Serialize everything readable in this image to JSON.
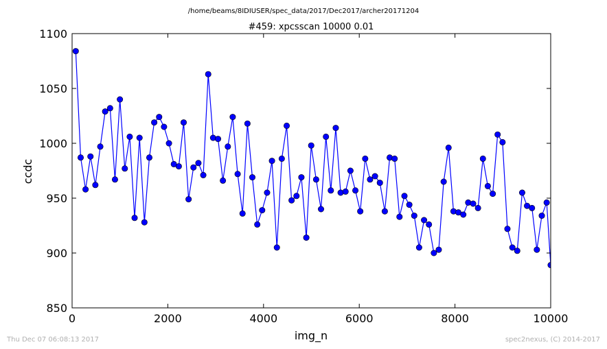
{
  "figure": {
    "suptitle": "/home/beams/8IDIUSER/spec_data/2017/Dec2017/archer20171204",
    "footer_left": "Thu Dec 07 06:08:13 2017",
    "footer_right": "spec2nexus, (C) 2014-2017"
  },
  "chart_data": {
    "type": "line",
    "title": "#459: xpcsscan 10000 0.01",
    "xlabel": "img_n",
    "ylabel": "ccdc",
    "xlim": [
      0,
      10000
    ],
    "ylim": [
      850,
      1100
    ],
    "xticks": [
      0,
      2000,
      4000,
      6000,
      8000,
      10000
    ],
    "yticks": [
      850,
      900,
      950,
      1000,
      1050,
      1100
    ],
    "grid": false,
    "line_color": "#0000ff",
    "marker": "circle",
    "series": [
      {
        "x": [
          76,
          179,
          281,
          384,
          486,
          589,
          691,
          794,
          896,
          999,
          1101,
          1204,
          1306,
          1409,
          1511,
          1614,
          1716,
          1819,
          1921,
          2024,
          2126,
          2229,
          2331,
          2434,
          2536,
          2639,
          2741,
          2844,
          2946,
          3049,
          3151,
          3254,
          3356,
          3459,
          3561,
          3664,
          3766,
          3869,
          3971,
          4074,
          4176,
          4279,
          4381,
          4484,
          4586,
          4689,
          4791,
          4894,
          4996,
          5099,
          5201,
          5304,
          5406,
          5509,
          5611,
          5714,
          5816,
          5919,
          6021,
          6124,
          6226,
          6329,
          6431,
          6534,
          6636,
          6739,
          6841,
          6944,
          7046,
          7149,
          7251,
          7354,
          7456,
          7559,
          7661,
          7764,
          7866,
          7969,
          8071,
          8174,
          8276,
          8379,
          8481,
          8584,
          8686,
          8789,
          8891,
          8994,
          9096,
          9199,
          9301,
          9404,
          9506,
          9609,
          9711,
          9814,
          9916,
          10000
        ],
        "values": [
          1084,
          987,
          958,
          988,
          962,
          997,
          1029,
          1032,
          967,
          1040,
          977,
          1006,
          932,
          1005,
          928,
          987,
          1019,
          1024,
          1015,
          1000,
          981,
          979,
          1019,
          949,
          978,
          982,
          971,
          1063,
          1005,
          1004,
          966,
          997,
          1024,
          972,
          936,
          1018,
          969,
          926,
          939,
          955,
          984,
          905,
          986,
          1016,
          948,
          952,
          969,
          914,
          998,
          967,
          940,
          1006,
          957,
          1014,
          955,
          956,
          975,
          957,
          938,
          986,
          967,
          970,
          964,
          938,
          987,
          986,
          933,
          952,
          944,
          934,
          905,
          930,
          926,
          900,
          903,
          965,
          996,
          938,
          937,
          935,
          946,
          945,
          941,
          986,
          961,
          954,
          1008,
          1001,
          922,
          905,
          902,
          955,
          943,
          941,
          903,
          934,
          946,
          889
        ]
      }
    ]
  }
}
